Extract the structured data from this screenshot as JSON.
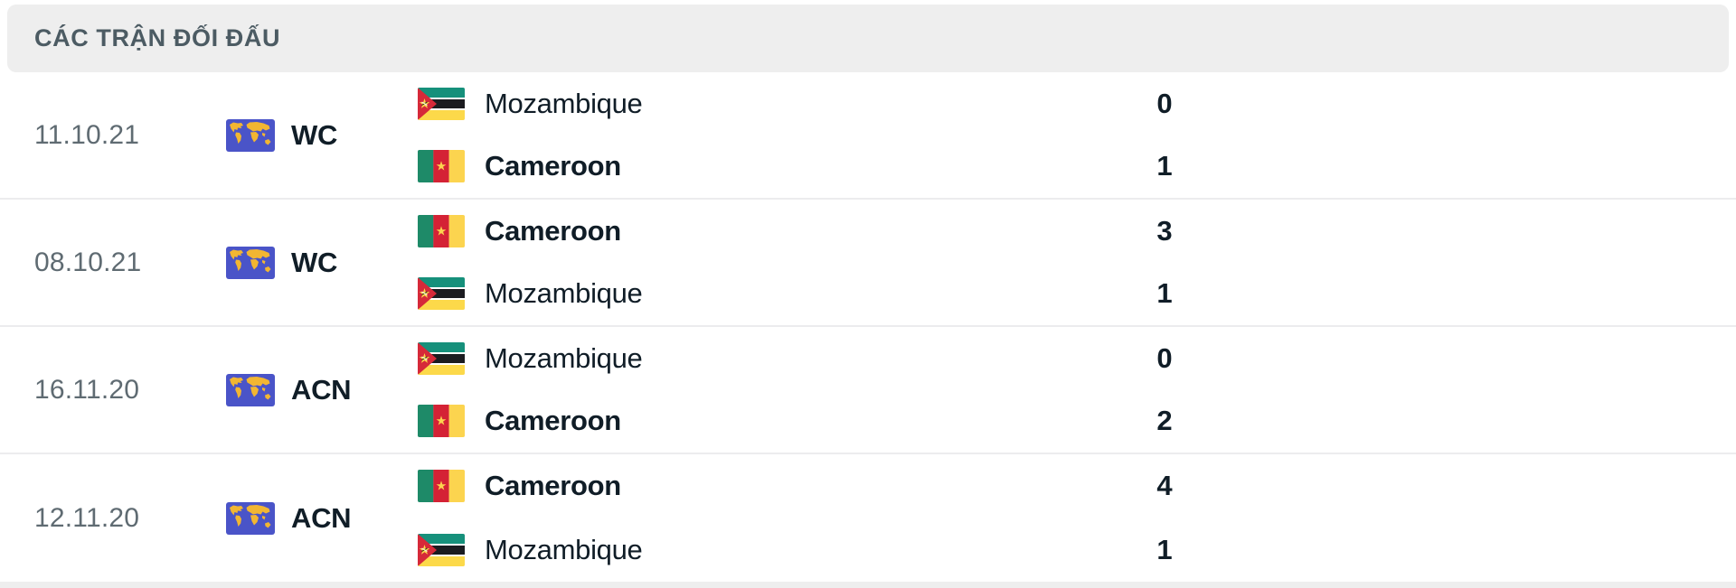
{
  "header": {
    "title": "CÁC TRẬN ĐỐI ĐẤU"
  },
  "colors": {
    "header_bg": "#eeeeee",
    "header_text": "#4c5b63",
    "date_text": "#5f6b72",
    "primary_text": "#101d27",
    "divider": "#ececee",
    "world_icon_blue": "#4a54c8",
    "world_icon_gold": "#f2b632"
  },
  "matches": [
    {
      "date": "11.10.21",
      "competition": "WC",
      "teams": [
        {
          "name": "Mozambique",
          "flag": "mozambique",
          "score": 0
        },
        {
          "name": "Cameroon",
          "flag": "cameroon",
          "score": 1
        }
      ]
    },
    {
      "date": "08.10.21",
      "competition": "WC",
      "teams": [
        {
          "name": "Cameroon",
          "flag": "cameroon",
          "score": 3
        },
        {
          "name": "Mozambique",
          "flag": "mozambique",
          "score": 1
        }
      ]
    },
    {
      "date": "16.11.20",
      "competition": "ACN",
      "teams": [
        {
          "name": "Mozambique",
          "flag": "mozambique",
          "score": 0
        },
        {
          "name": "Cameroon",
          "flag": "cameroon",
          "score": 2
        }
      ]
    },
    {
      "date": "12.11.20",
      "competition": "ACN",
      "teams": [
        {
          "name": "Cameroon",
          "flag": "cameroon",
          "score": 4
        },
        {
          "name": "Mozambique",
          "flag": "mozambique",
          "score": 1
        }
      ]
    }
  ]
}
